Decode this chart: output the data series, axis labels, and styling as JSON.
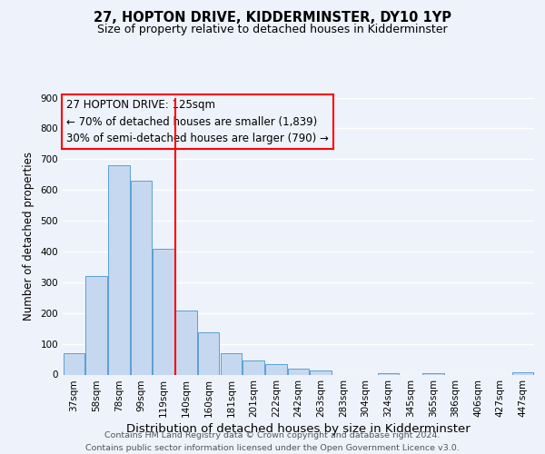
{
  "title": "27, HOPTON DRIVE, KIDDERMINSTER, DY10 1YP",
  "subtitle": "Size of property relative to detached houses in Kidderminster",
  "xlabel": "Distribution of detached houses by size in Kidderminster",
  "ylabel": "Number of detached properties",
  "bar_labels": [
    "37sqm",
    "58sqm",
    "78sqm",
    "99sqm",
    "119sqm",
    "140sqm",
    "160sqm",
    "181sqm",
    "201sqm",
    "222sqm",
    "242sqm",
    "263sqm",
    "283sqm",
    "304sqm",
    "324sqm",
    "345sqm",
    "365sqm",
    "386sqm",
    "406sqm",
    "427sqm",
    "447sqm"
  ],
  "bar_values": [
    70,
    320,
    680,
    630,
    410,
    207,
    138,
    68,
    47,
    35,
    20,
    12,
    0,
    0,
    5,
    0,
    5,
    0,
    0,
    0,
    8
  ],
  "bar_color": "#c5d8f0",
  "bar_edge_color": "#5a9fd4",
  "ylim": [
    0,
    900
  ],
  "yticks": [
    0,
    100,
    200,
    300,
    400,
    500,
    600,
    700,
    800,
    900
  ],
  "red_line_bin": 4,
  "annotation_title": "27 HOPTON DRIVE: 125sqm",
  "annotation_line1": "← 70% of detached houses are smaller (1,839)",
  "annotation_line2": "30% of semi-detached houses are larger (790) →",
  "footer_line1": "Contains HM Land Registry data © Crown copyright and database right 2024.",
  "footer_line2": "Contains public sector information licensed under the Open Government Licence v3.0.",
  "background_color": "#eef2fa",
  "grid_color": "#ffffff",
  "title_fontsize": 10.5,
  "subtitle_fontsize": 9,
  "xlabel_fontsize": 9.5,
  "ylabel_fontsize": 8.5,
  "tick_fontsize": 7.5,
  "footer_fontsize": 6.8,
  "annotation_fontsize": 8.5
}
